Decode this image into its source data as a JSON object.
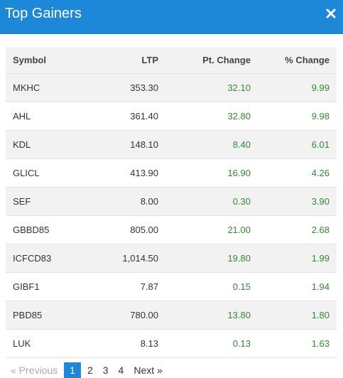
{
  "header": {
    "title": "Top Gainers",
    "close_icon": "close-icon",
    "background_color": "#1e88d8"
  },
  "table": {
    "columns": [
      "Symbol",
      "LTP",
      "Pt. Change",
      "% Change"
    ],
    "rows": [
      {
        "symbol": "MKHC",
        "ltp": "353.30",
        "pt_change": "32.10",
        "pct_change": "9.99"
      },
      {
        "symbol": "AHL",
        "ltp": "361.40",
        "pt_change": "32.80",
        "pct_change": "9.98"
      },
      {
        "symbol": "KDL",
        "ltp": "148.10",
        "pt_change": "8.40",
        "pct_change": "6.01"
      },
      {
        "symbol": "GLICL",
        "ltp": "413.90",
        "pt_change": "16.90",
        "pct_change": "4.26"
      },
      {
        "symbol": "SEF",
        "ltp": "8.00",
        "pt_change": "0.30",
        "pct_change": "3.90"
      },
      {
        "symbol": "GBBD85",
        "ltp": "805.00",
        "pt_change": "21.00",
        "pct_change": "2.68"
      },
      {
        "symbol": "ICFCD83",
        "ltp": "1,014.50",
        "pt_change": "19.80",
        "pct_change": "1.99"
      },
      {
        "symbol": "GIBF1",
        "ltp": "7.87",
        "pt_change": "0.15",
        "pct_change": "1.94"
      },
      {
        "symbol": "PBD85",
        "ltp": "780.00",
        "pt_change": "13.80",
        "pct_change": "1.80"
      },
      {
        "symbol": "LUK",
        "ltp": "8.13",
        "pt_change": "0.13",
        "pct_change": "1.63"
      }
    ],
    "positive_color": "#2e8b2e"
  },
  "pagination": {
    "previous_label": "« Previous",
    "pages": [
      "1",
      "2",
      "3",
      "4"
    ],
    "current_page": "1",
    "next_label": "Next »"
  }
}
